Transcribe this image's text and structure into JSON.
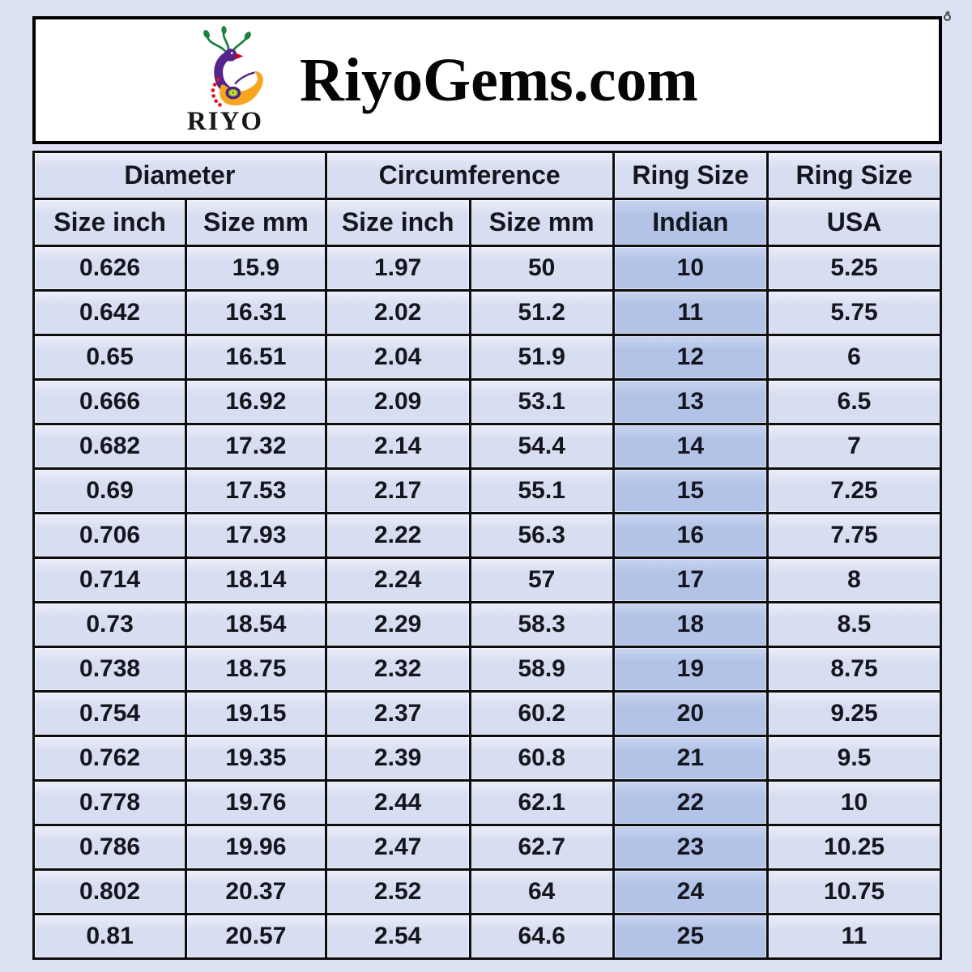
{
  "header": {
    "title": "RiyoGems.com",
    "logo_brand": "RIYO",
    "logo_icon": "peacock-logo"
  },
  "table": {
    "group_headers": [
      {
        "label": "Diameter",
        "span": 2
      },
      {
        "label": "Circumference",
        "span": 2
      },
      {
        "label": "Ring Size",
        "span": 1
      },
      {
        "label": "Ring Size",
        "span": 1
      }
    ],
    "sub_headers": [
      "Size inch",
      "Size mm",
      "Size inch",
      "Size mm",
      "Indian",
      "USA"
    ],
    "highlight_column": "Indian"
  },
  "chart_data": {
    "type": "table",
    "title": "RiyoGems.com",
    "column_groups": [
      "Diameter",
      "Diameter",
      "Circumference",
      "Circumference",
      "Ring Size",
      "Ring Size"
    ],
    "columns": [
      "Size inch",
      "Size mm",
      "Size inch",
      "Size mm",
      "Indian",
      "USA"
    ],
    "rows": [
      [
        "0.626",
        "15.9",
        "1.97",
        "50",
        "10",
        "5.25"
      ],
      [
        "0.642",
        "16.31",
        "2.02",
        "51.2",
        "11",
        "5.75"
      ],
      [
        "0.65",
        "16.51",
        "2.04",
        "51.9",
        "12",
        "6"
      ],
      [
        "0.666",
        "16.92",
        "2.09",
        "53.1",
        "13",
        "6.5"
      ],
      [
        "0.682",
        "17.32",
        "2.14",
        "54.4",
        "14",
        "7"
      ],
      [
        "0.69",
        "17.53",
        "2.17",
        "55.1",
        "15",
        "7.25"
      ],
      [
        "0.706",
        "17.93",
        "2.22",
        "56.3",
        "16",
        "7.75"
      ],
      [
        "0.714",
        "18.14",
        "2.24",
        "57",
        "17",
        "8"
      ],
      [
        "0.73",
        "18.54",
        "2.29",
        "58.3",
        "18",
        "8.5"
      ],
      [
        "0.738",
        "18.75",
        "2.32",
        "58.9",
        "19",
        "8.75"
      ],
      [
        "0.754",
        "19.15",
        "2.37",
        "60.2",
        "20",
        "9.25"
      ],
      [
        "0.762",
        "19.35",
        "2.39",
        "60.8",
        "21",
        "9.5"
      ],
      [
        "0.778",
        "19.76",
        "2.44",
        "62.1",
        "22",
        "10"
      ],
      [
        "0.786",
        "19.96",
        "2.47",
        "62.7",
        "23",
        "10.25"
      ],
      [
        "0.802",
        "20.37",
        "2.52",
        "64",
        "24",
        "10.75"
      ],
      [
        "0.81",
        "20.57",
        "2.54",
        "64.6",
        "25",
        "11"
      ]
    ]
  },
  "colors": {
    "page_background": "#dbe0f3",
    "cell_light": "#d8def1",
    "cell_highlight": "#b2c3e7",
    "grid_border": "#0d0d0d",
    "text": "#15151e",
    "header_box_background": "#ffffff",
    "logo_orange": "#f7a51e",
    "logo_purple": "#55258b",
    "logo_green": "#1e8040",
    "logo_red": "#e4151c"
  }
}
